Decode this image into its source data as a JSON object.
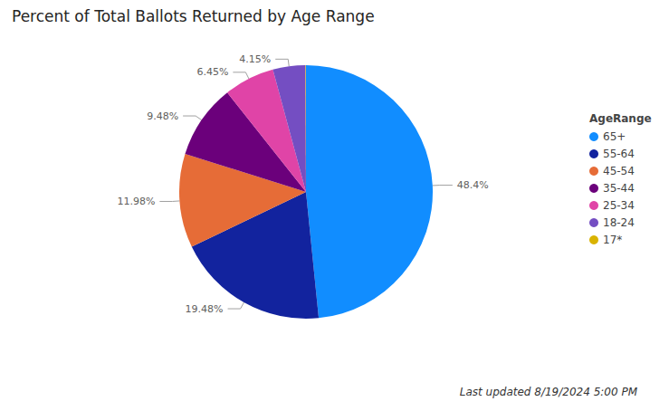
{
  "chart_data": {
    "type": "pie",
    "title": "Percent of Total Ballots Returned by Age Range",
    "legend_title": "AgeRange",
    "categories": [
      "65+",
      "55-64",
      "45-54",
      "35-44",
      "25-34",
      "18-24",
      "17*"
    ],
    "values": [
      48.4,
      19.48,
      11.98,
      9.48,
      6.45,
      4.15,
      0.06
    ],
    "value_labels": [
      "48.4%",
      "19.48%",
      "11.98%",
      "9.48%",
      "6.45%",
      "4.15%",
      null
    ],
    "colors": [
      "#118DFF",
      "#12239E",
      "#E66C37",
      "#6B007B",
      "#E044A7",
      "#744EC2",
      "#D9B300"
    ],
    "data_labels": true,
    "legend": "right",
    "annotations": [
      "Last updated 8/19/2024 5:00 PM"
    ]
  }
}
